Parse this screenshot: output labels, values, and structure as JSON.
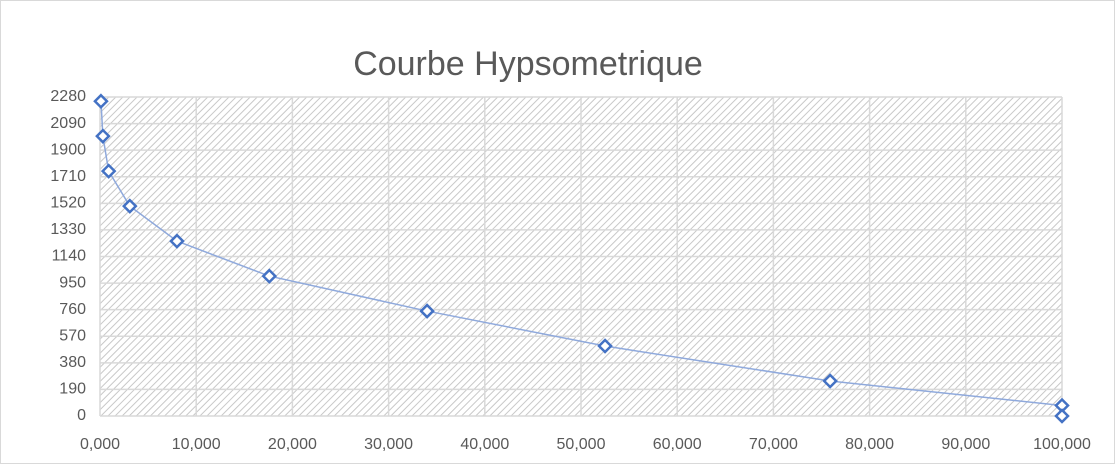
{
  "chart_data": {
    "type": "scatter",
    "title": "Courbe Hypsometrique",
    "connect": true,
    "line_color": "#8fa9dc",
    "marker_color": "#4472c4",
    "series": [
      {
        "name": null,
        "x": [
          0.1,
          0.3,
          0.9,
          3.1,
          8.0,
          17.6,
          34.0,
          52.5,
          75.9,
          100,
          100
        ],
        "values": [
          2250,
          2000,
          1750,
          1500,
          1250,
          1000,
          750,
          500,
          250,
          75,
          0
        ]
      }
    ],
    "xlim": [
      0,
      100
    ],
    "xticks": [
      {
        "value": 0,
        "label": "0,000"
      },
      {
        "value": 10,
        "label": "10,000"
      },
      {
        "value": 20,
        "label": "20,000"
      },
      {
        "value": 30,
        "label": "30,000"
      },
      {
        "value": 40,
        "label": "40,000"
      },
      {
        "value": 50,
        "label": "50,000"
      },
      {
        "value": 60,
        "label": "60,000"
      },
      {
        "value": 70,
        "label": "70,000"
      },
      {
        "value": 80,
        "label": "80,000"
      },
      {
        "value": 90,
        "label": "90,000"
      },
      {
        "value": 100,
        "label": "100,000"
      }
    ],
    "ylim": [
      0,
      2280
    ],
    "yticks": [
      0,
      190,
      380,
      570,
      760,
      950,
      1140,
      1330,
      1520,
      1710,
      1900,
      2090,
      2280
    ],
    "grid": true
  }
}
